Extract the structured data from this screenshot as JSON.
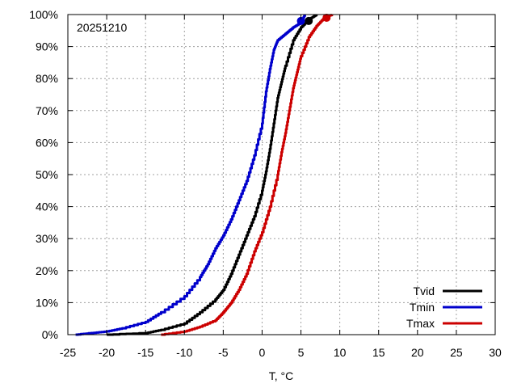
{
  "chart_data": {
    "type": "line",
    "title": "",
    "annotation": "20251210",
    "xlabel": "T, °C",
    "ylabel": "",
    "xlim": [
      -25,
      30
    ],
    "ylim": [
      0,
      100
    ],
    "x_ticks": [
      -25,
      -20,
      -15,
      -10,
      -5,
      0,
      5,
      10,
      15,
      20,
      25,
      30
    ],
    "x_tick_labels": [
      "-25",
      "-20",
      "-15",
      "-10",
      "-5",
      "0",
      "5",
      "10",
      "15",
      "20",
      "25",
      "30"
    ],
    "y_ticks": [
      0,
      10,
      20,
      30,
      40,
      50,
      60,
      70,
      80,
      90,
      100
    ],
    "y_tick_labels": [
      "0%",
      "10%",
      "20%",
      "30%",
      "40%",
      "50%",
      "60%",
      "70%",
      "80%",
      "90%",
      "100%"
    ],
    "grid": true,
    "legend_position": "bottom-right",
    "series": [
      {
        "name": "Tvid",
        "color": "#000000",
        "x": [
          -20,
          -15,
          -13,
          -10,
          -8,
          -6,
          -5,
          -4,
          -3,
          -2,
          -1,
          0,
          0.5,
          1,
          1.5,
          2,
          2.5,
          3,
          4,
          5,
          6,
          7
        ],
        "y": [
          0,
          0.5,
          1.5,
          3.5,
          7,
          11,
          14,
          19,
          25,
          31,
          37,
          45,
          51,
          58,
          66,
          74,
          79,
          84,
          92,
          96,
          98.5,
          100
        ],
        "end_marker": [
          6,
          98
        ]
      },
      {
        "name": "Tmin",
        "color": "#0000cc",
        "x": [
          -24,
          -22,
          -20,
          -18,
          -15,
          -13,
          -10,
          -8,
          -7,
          -6,
          -5,
          -4,
          -3,
          -2,
          -1,
          0,
          0.5,
          1,
          1.5,
          2,
          3,
          4,
          5,
          5.5
        ],
        "y": [
          0,
          0.5,
          1,
          2,
          4,
          7,
          12,
          18,
          22,
          27,
          31,
          36,
          42,
          48,
          56,
          66,
          76,
          83,
          89,
          92,
          94,
          96,
          97.5,
          100
        ],
        "end_marker": [
          5,
          98
        ]
      },
      {
        "name": "Tmax",
        "color": "#cc0000",
        "x": [
          -13,
          -10,
          -8,
          -6,
          -5,
          -4,
          -3,
          -2,
          -1,
          0,
          1,
          2,
          2.5,
          3,
          3.5,
          4,
          4.5,
          5,
          6,
          7,
          8,
          9
        ],
        "y": [
          0,
          1,
          2.5,
          4.5,
          7,
          10,
          14,
          19,
          26,
          32,
          40,
          50,
          57,
          63,
          70,
          77,
          82,
          87,
          93,
          96.5,
          99,
          100
        ],
        "end_marker": [
          8.3,
          99
        ]
      }
    ]
  }
}
